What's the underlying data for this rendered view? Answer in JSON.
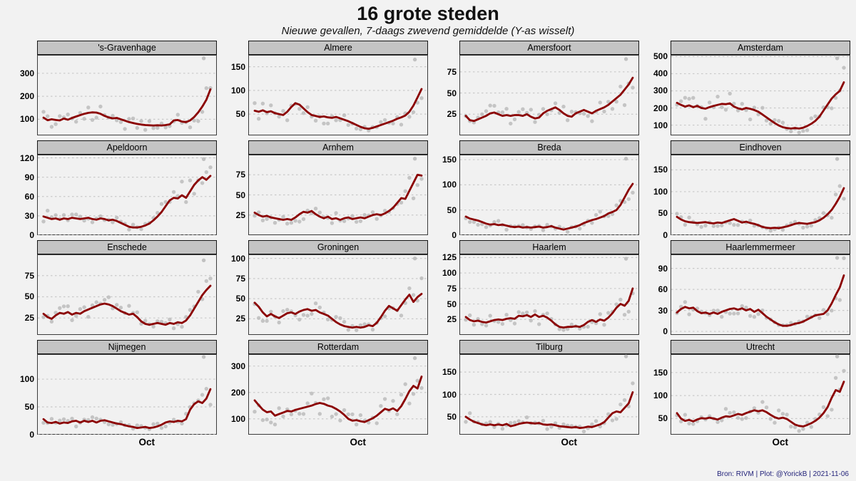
{
  "title": "16 grote steden",
  "subtitle": "Nieuwe gevallen, 7-daags zwevend gemiddelde (Y-as wisselt)",
  "footer_credit": "Bron: RIVM | Plot: @YorickB |  2021-11-06",
  "colors": {
    "trend_line": "#8b0000",
    "scatter_point": "#b9b9b9",
    "panel_header_bg": "#c4c4c4",
    "plot_bg": "#f1f1f1",
    "gridline": "#c9c9c9",
    "page_bg": "#f2f2f2",
    "footer_text": "#23237a",
    "panel_border": "#3c3c3c"
  },
  "chart_data": {
    "type": "line",
    "title": "16 grote steden",
    "subtitle": "Nieuwe gevallen, 7-daags zwevend gemiddelde (Y-as wisselt)",
    "layout": {
      "rows": 4,
      "cols": 4,
      "grid": "dashed-horizontal",
      "free_y_scale": true,
      "legend": "none"
    },
    "x_tick_label": "Oct",
    "x_label_rel_pos": 0.61,
    "panels": [
      {
        "name": "'s-Gravenhage",
        "yticks": [
          100,
          200,
          300
        ],
        "ylim": [
          30,
          380
        ],
        "scatter_max": 365,
        "trend": [
          107,
          96,
          100,
          97,
          95,
          103,
          98,
          106,
          112,
          118,
          124,
          128,
          130,
          129,
          124,
          115,
          108,
          104,
          106,
          100,
          94,
          88,
          84,
          80,
          77,
          75,
          74,
          73,
          74,
          73,
          75,
          78,
          95,
          97,
          90,
          88,
          95,
          110,
          130,
          155,
          185,
          230
        ]
      },
      {
        "name": "Almere",
        "yticks": [
          50,
          100,
          150
        ],
        "ylim": [
          5,
          175
        ],
        "scatter_max": 165,
        "trend": [
          57,
          55,
          58,
          54,
          56,
          52,
          50,
          48,
          55,
          65,
          73,
          70,
          62,
          54,
          48,
          46,
          44,
          45,
          43,
          42,
          44,
          41,
          38,
          35,
          31,
          27,
          23,
          20,
          19,
          21,
          24,
          27,
          30,
          33,
          36,
          40,
          43,
          47,
          55,
          68,
          85,
          103
        ]
      },
      {
        "name": "Amersfoort",
        "yticks": [
          25,
          50,
          75
        ],
        "ylim": [
          0,
          95
        ],
        "scatter_max": 90,
        "trend": [
          23,
          18,
          17,
          19,
          21,
          23,
          26,
          27,
          25,
          23,
          24,
          23,
          24,
          24,
          23,
          25,
          22,
          20,
          21,
          26,
          29,
          31,
          33,
          30,
          26,
          23,
          22,
          26,
          28,
          30,
          28,
          26,
          29,
          31,
          33,
          36,
          40,
          44,
          48,
          54,
          60,
          68
        ]
      },
      {
        "name": "Amsterdam",
        "yticks": [
          100,
          200,
          300,
          400,
          500
        ],
        "ylim": [
          40,
          510
        ],
        "scatter_max": 490,
        "trend": [
          230,
          218,
          208,
          215,
          205,
          212,
          200,
          196,
          205,
          212,
          218,
          224,
          222,
          227,
          208,
          198,
          192,
          200,
          195,
          188,
          178,
          162,
          145,
          128,
          112,
          98,
          88,
          83,
          80,
          83,
          80,
          85,
          95,
          108,
          125,
          150,
          185,
          220,
          255,
          280,
          300,
          350
        ]
      },
      {
        "name": "Apeldoorn",
        "yticks": [
          0,
          30,
          60,
          90,
          120
        ],
        "ylim": [
          0,
          125
        ],
        "scatter_max": 118,
        "trend": [
          29,
          27,
          25,
          26,
          24,
          26,
          25,
          27,
          26,
          25,
          26,
          27,
          25,
          24,
          26,
          25,
          23,
          24,
          22,
          19,
          16,
          13,
          12,
          12,
          13,
          15,
          18,
          23,
          29,
          36,
          45,
          54,
          58,
          57,
          62,
          58,
          68,
          78,
          85,
          90,
          86,
          92
        ]
      },
      {
        "name": "Arnhem",
        "yticks": [
          25,
          50,
          75
        ],
        "ylim": [
          0,
          100
        ],
        "scatter_max": 95,
        "trend": [
          28,
          25,
          23,
          24,
          22,
          21,
          20,
          19,
          20,
          19,
          22,
          26,
          29,
          28,
          30,
          26,
          23,
          21,
          23,
          20,
          21,
          19,
          21,
          22,
          20,
          21,
          22,
          21,
          23,
          25,
          26,
          25,
          27,
          30,
          34,
          40,
          46,
          45,
          55,
          65,
          75,
          74
        ]
      },
      {
        "name": "Breda",
        "yticks": [
          0,
          50,
          100,
          150
        ],
        "ylim": [
          0,
          160
        ],
        "scatter_max": 152,
        "trend": [
          37,
          33,
          31,
          29,
          26,
          23,
          21,
          22,
          20,
          21,
          19,
          17,
          16,
          17,
          15,
          16,
          15,
          16,
          17,
          15,
          16,
          18,
          15,
          13,
          11,
          13,
          15,
          17,
          20,
          24,
          27,
          30,
          32,
          35,
          38,
          43,
          46,
          50,
          60,
          75,
          90,
          102
        ]
      },
      {
        "name": "Eindhoven",
        "yticks": [
          0,
          50,
          100,
          150
        ],
        "ylim": [
          0,
          185
        ],
        "scatter_max": 175,
        "trend": [
          42,
          36,
          32,
          30,
          29,
          28,
          29,
          30,
          28,
          27,
          29,
          28,
          31,
          34,
          37,
          33,
          29,
          31,
          28,
          26,
          23,
          19,
          17,
          16,
          17,
          16,
          18,
          20,
          23,
          26,
          28,
          27,
          26,
          28,
          30,
          34,
          40,
          48,
          58,
          72,
          88,
          108
        ]
      },
      {
        "name": "Enschede",
        "yticks": [
          25,
          50,
          75
        ],
        "ylim": [
          5,
          100
        ],
        "scatter_max": 93,
        "trend": [
          30,
          26,
          24,
          28,
          31,
          30,
          32,
          29,
          31,
          30,
          33,
          35,
          37,
          39,
          41,
          42,
          41,
          39,
          36,
          33,
          31,
          29,
          30,
          26,
          21,
          18,
          17,
          18,
          19,
          18,
          17,
          19,
          18,
          20,
          19,
          22,
          28,
          36,
          44,
          52,
          58,
          63
        ]
      },
      {
        "name": "Groningen",
        "yticks": [
          25,
          50,
          75,
          100
        ],
        "ylim": [
          5,
          105
        ],
        "scatter_max": 100,
        "trend": [
          45,
          40,
          33,
          28,
          31,
          28,
          26,
          29,
          32,
          33,
          31,
          34,
          36,
          37,
          35,
          36,
          33,
          31,
          29,
          25,
          21,
          18,
          16,
          15,
          14,
          15,
          14,
          15,
          17,
          16,
          20,
          27,
          35,
          41,
          38,
          35,
          42,
          49,
          55,
          46,
          52,
          56
        ]
      },
      {
        "name": "Haarlem",
        "yticks": [
          25,
          50,
          75,
          100,
          125
        ],
        "ylim": [
          0,
          130
        ],
        "scatter_max": 123,
        "trend": [
          29,
          24,
          22,
          23,
          21,
          20,
          22,
          24,
          25,
          24,
          26,
          27,
          26,
          31,
          30,
          32,
          29,
          33,
          29,
          31,
          28,
          23,
          17,
          13,
          12,
          13,
          13,
          14,
          13,
          16,
          21,
          24,
          21,
          25,
          23,
          28,
          35,
          44,
          50,
          47,
          55,
          75
        ]
      },
      {
        "name": "Haarlemmermeer",
        "yticks": [
          0,
          30,
          60,
          90
        ],
        "ylim": [
          -5,
          110
        ],
        "scatter_max": 105,
        "trend": [
          27,
          32,
          35,
          33,
          34,
          29,
          26,
          27,
          25,
          27,
          25,
          28,
          30,
          32,
          33,
          31,
          33,
          30,
          32,
          28,
          31,
          26,
          21,
          17,
          13,
          10,
          8,
          8,
          9,
          11,
          12,
          14,
          17,
          20,
          23,
          24,
          25,
          30,
          40,
          52,
          63,
          80
        ]
      },
      {
        "name": "Nijmegen",
        "yticks": [
          0,
          50,
          100
        ],
        "ylim": [
          0,
          145
        ],
        "scatter_max": 140,
        "trend": [
          28,
          22,
          21,
          23,
          20,
          22,
          21,
          24,
          25,
          22,
          25,
          23,
          25,
          22,
          25,
          26,
          24,
          22,
          20,
          19,
          17,
          15,
          14,
          12,
          13,
          14,
          12,
          13,
          15,
          18,
          22,
          24,
          23,
          25,
          24,
          28,
          45,
          55,
          60,
          57,
          65,
          82
        ]
      },
      {
        "name": "Rotterdam",
        "yticks": [
          100,
          200,
          300
        ],
        "ylim": [
          40,
          345
        ],
        "scatter_max": 330,
        "trend": [
          170,
          152,
          135,
          125,
          128,
          112,
          118,
          124,
          130,
          128,
          134,
          138,
          142,
          146,
          150,
          156,
          160,
          157,
          150,
          146,
          138,
          128,
          115,
          100,
          93,
          95,
          91,
          88,
          95,
          102,
          112,
          125,
          138,
          133,
          140,
          130,
          148,
          175,
          205,
          225,
          215,
          260
        ]
      },
      {
        "name": "Tilburg",
        "yticks": [
          50,
          100,
          150
        ],
        "ylim": [
          10,
          190
        ],
        "scatter_max": 185,
        "trend": [
          50,
          44,
          39,
          36,
          33,
          31,
          33,
          31,
          33,
          31,
          34,
          29,
          31,
          34,
          36,
          37,
          36,
          35,
          36,
          33,
          32,
          33,
          31,
          29,
          28,
          27,
          26,
          27,
          25,
          26,
          28,
          27,
          30,
          33,
          38,
          48,
          58,
          62,
          60,
          70,
          80,
          105
        ]
      },
      {
        "name": "Utrecht",
        "yticks": [
          50,
          100,
          150
        ],
        "ylim": [
          15,
          190
        ],
        "scatter_max": 185,
        "trend": [
          62,
          50,
          45,
          47,
          44,
          48,
          51,
          50,
          52,
          50,
          48,
          52,
          55,
          54,
          57,
          60,
          58,
          62,
          65,
          68,
          66,
          68,
          64,
          58,
          53,
          50,
          52,
          49,
          43,
          37,
          34,
          33,
          36,
          40,
          45,
          52,
          62,
          75,
          95,
          112,
          108,
          130
        ]
      }
    ]
  }
}
